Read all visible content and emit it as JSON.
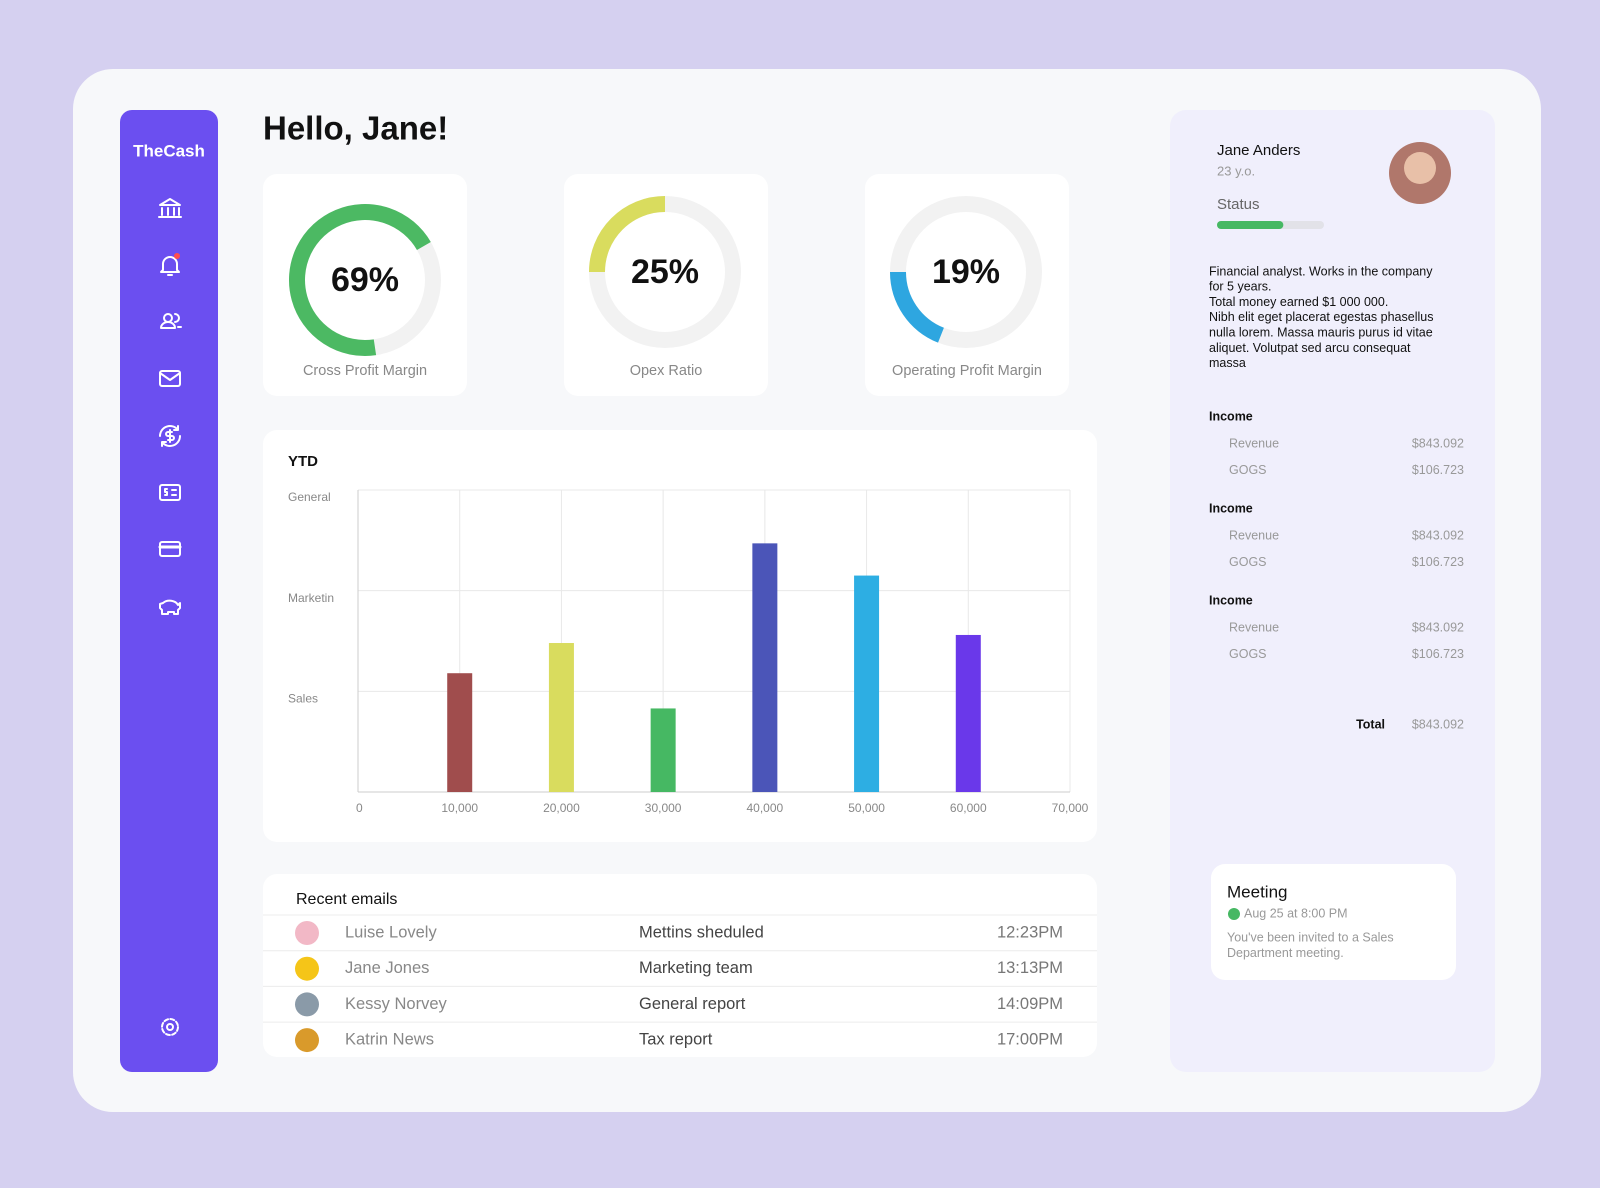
{
  "sidebar": {
    "brand": "TheCash"
  },
  "greeting": "Hello, Jane!",
  "chart_data": [
    {
      "type": "donut",
      "title": "Cross Profit Margin",
      "values": [
        69
      ],
      "value_labels": [
        "69%"
      ],
      "ylim": [
        0,
        100
      ],
      "color": "#4cb963"
    },
    {
      "type": "donut",
      "title": "Opex Ratio",
      "values": [
        25
      ],
      "value_labels": [
        "25%"
      ],
      "ylim": [
        0,
        100
      ],
      "color": "#d9dc5e"
    },
    {
      "type": "donut",
      "title": "Operating Profit Margin",
      "values": [
        19
      ],
      "value_labels": [
        "19%"
      ],
      "ylim": [
        0,
        100
      ],
      "color": "#2ea6e0"
    },
    {
      "type": "bar",
      "title": "YTD",
      "x": [
        10000,
        20000,
        30000,
        40000,
        50000,
        60000
      ],
      "values": [
        1.18,
        1.48,
        0.83,
        2.47,
        2.15,
        1.56
      ],
      "colors": [
        "#a04d4d",
        "#d9dc5e",
        "#46b863",
        "#4b55b8",
        "#2daee3",
        "#6a38ea"
      ],
      "xlim": [
        0,
        70000
      ],
      "xticks": [
        0,
        {
          "value": 10000,
          "label": "10,000"
        },
        {
          "value": 20000,
          "label": "20,000"
        },
        {
          "value": 30000,
          "label": "30,000"
        },
        {
          "value": 40000,
          "label": "40,000"
        },
        {
          "value": 50000,
          "label": "50,000"
        },
        {
          "value": 60000,
          "label": "60,000"
        },
        {
          "value": 70000,
          "label": "70,000"
        }
      ],
      "ylim": [
        0,
        3
      ],
      "yticks": [
        {
          "value": 1,
          "label": "Sales"
        },
        {
          "value": 2,
          "label": "Marketin"
        },
        {
          "value": 3,
          "label": "General"
        }
      ],
      "grid": true
    }
  ],
  "emails": {
    "title": "Recent emails",
    "rows": [
      {
        "name": "Luise Lovely",
        "subject": "Mettins sheduled",
        "time": "12:23PM"
      },
      {
        "name": "Jane Jones",
        "subject": "Marketing team",
        "time": "13:13PM"
      },
      {
        "name": "Kessy Norvey",
        "subject": "General report",
        "time": "14:09PM"
      },
      {
        "name": "Katrin News",
        "subject": "Tax report",
        "time": "17:00PM"
      }
    ]
  },
  "profile": {
    "name": "Jane Anders",
    "age": "23 y.o.",
    "status": {
      "label": "Status",
      "value": 62,
      "range": [
        0,
        100
      ]
    },
    "description": [
      "Financial analyst. Works in the company",
      "for 5 years.",
      "Total money earned $1 000 000.",
      "Nibh elit eget placerat egestas phasellus",
      "nulla lorem. Massa mauris purus id vitae",
      "aliquet. Volutpat sed arcu consequat",
      "massa"
    ],
    "income": [
      {
        "title": "Income",
        "rows": [
          {
            "label": "Revenue",
            "value": "$843.092"
          },
          {
            "label": "GOGS",
            "value": "$106.723"
          }
        ]
      },
      {
        "title": "Income",
        "rows": [
          {
            "label": "Revenue",
            "value": "$843.092"
          },
          {
            "label": "GOGS",
            "value": "$106.723"
          }
        ]
      },
      {
        "title": "Income",
        "rows": [
          {
            "label": "Revenue",
            "value": "$843.092"
          },
          {
            "label": "GOGS",
            "value": "$106.723"
          }
        ]
      }
    ],
    "total": {
      "label": "Total",
      "value": "$843.092"
    }
  },
  "meeting": {
    "title": "Meeting",
    "date": "Aug 25 at 8:00 PM",
    "text": [
      "You've been invited to a Sales",
      "Department meeting."
    ]
  }
}
